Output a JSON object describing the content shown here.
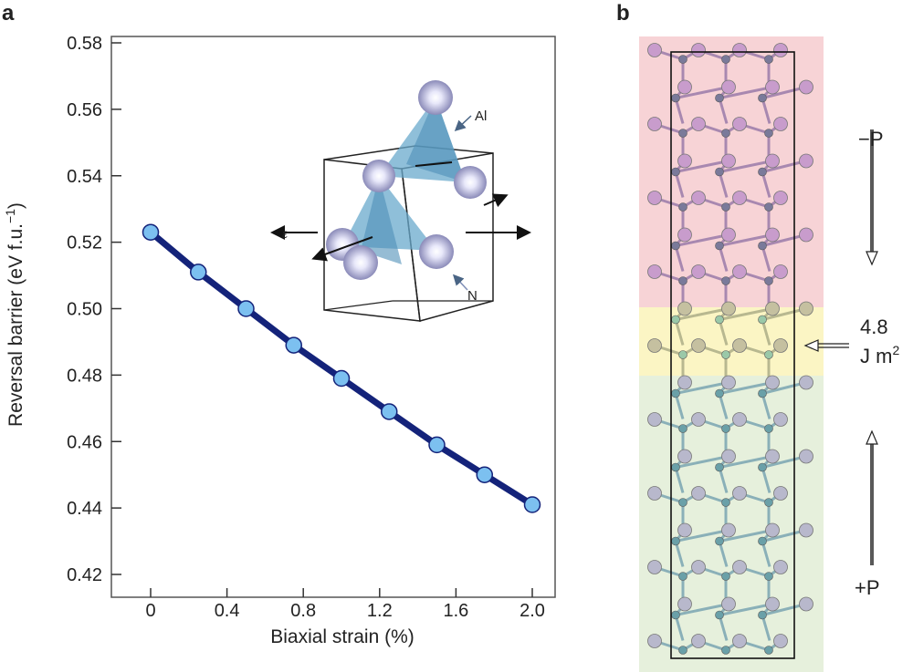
{
  "panel_a": {
    "label": "a"
  },
  "panel_b": {
    "label": "b",
    "top_polarization": "−P",
    "bottom_polarization": "+P",
    "interface_energy_value": "4.8",
    "interface_energy_unit": "J m",
    "interface_energy_exp": "2",
    "region_colors": {
      "top": "#f7d3d6",
      "interface": "#fbf5c4",
      "bottom": "#e6f0dc"
    }
  },
  "inset": {
    "al_label": "Al",
    "n_label": "N",
    "strain_label": "ε"
  },
  "chart_data": {
    "type": "line",
    "title": "",
    "xlabel": "Biaxial strain (%)",
    "ylabel": "Reversal barrier (eV f.u.",
    "ylabel_exp": "−1",
    "ylabel_close": ")",
    "xlim": [
      -0.2,
      2.2
    ],
    "ylim": [
      0.42,
      0.58
    ],
    "xticks": [
      0,
      0.4,
      0.8,
      1.2,
      1.6,
      2.0
    ],
    "xtick_labels": [
      "0",
      "0.4",
      "0.8",
      "1.2",
      "1.6",
      "2.0"
    ],
    "yticks": [
      0.42,
      0.44,
      0.46,
      0.48,
      0.5,
      0.52,
      0.54,
      0.56,
      0.58
    ],
    "ytick_labels": [
      "0.42",
      "0.44",
      "0.46",
      "0.48",
      "0.50",
      "0.52",
      "0.54",
      "0.56",
      "0.58"
    ],
    "grid": false,
    "series": [
      {
        "name": "Reversal barrier",
        "x": [
          0,
          0.25,
          0.5,
          0.75,
          1.0,
          1.25,
          1.5,
          1.75,
          2.0
        ],
        "y": [
          0.523,
          0.511,
          0.5,
          0.489,
          0.479,
          0.469,
          0.459,
          0.45,
          0.441
        ],
        "line_color": "#14237a",
        "marker_color": "#7cc0f0"
      }
    ]
  }
}
